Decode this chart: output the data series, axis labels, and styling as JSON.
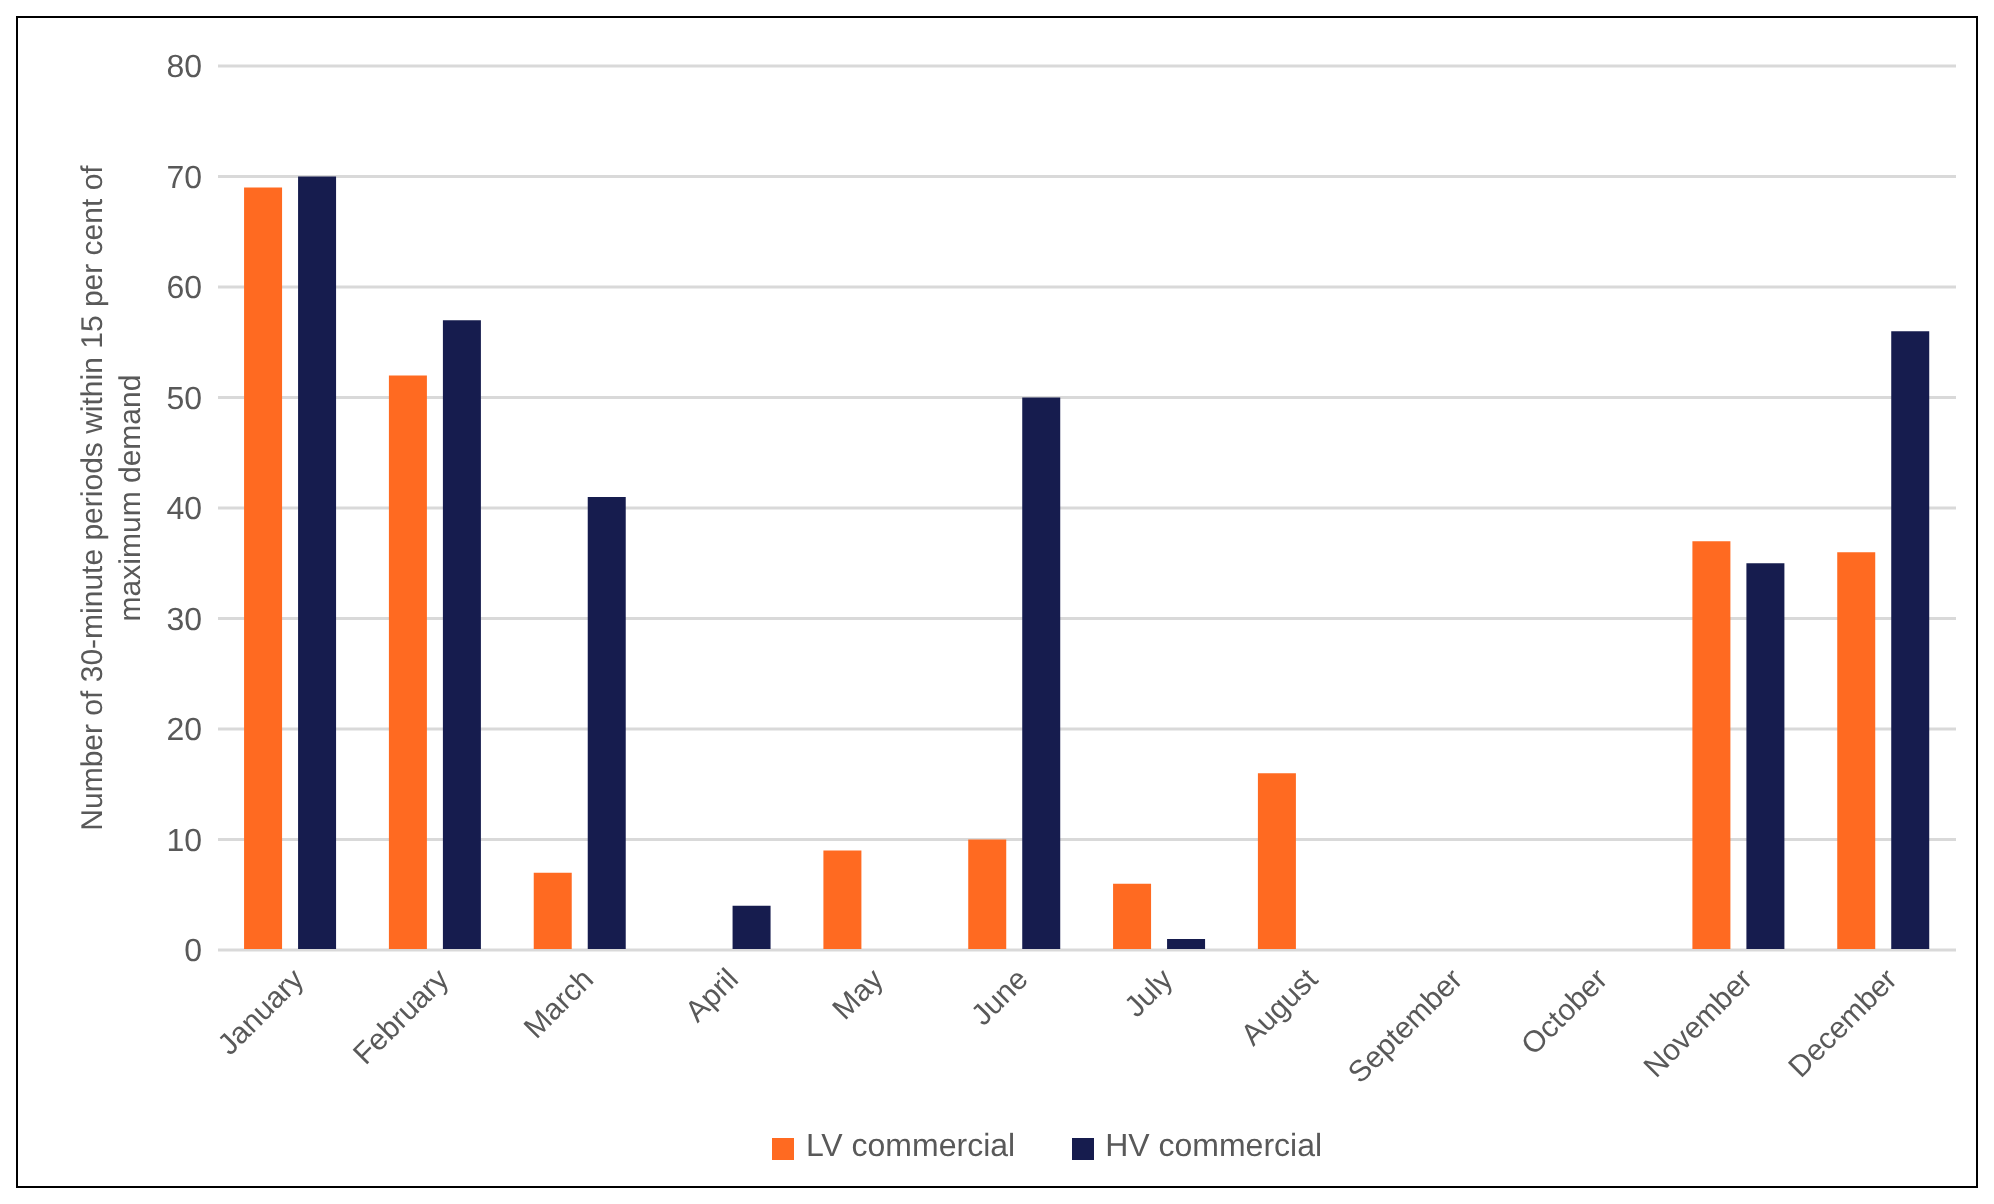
{
  "chart_data": {
    "type": "bar",
    "ylabel": "Number of 30-minute periods within 15 per cent of maximum demand",
    "categories": [
      "January",
      "February",
      "March",
      "April",
      "May",
      "June",
      "July",
      "August",
      "September",
      "October",
      "November",
      "December"
    ],
    "series": [
      {
        "name": "LV commercial",
        "color": "#ff6a21",
        "values": [
          69,
          52,
          7,
          0,
          9,
          10,
          6,
          16,
          0,
          0,
          37,
          36
        ]
      },
      {
        "name": "HV commercial",
        "color": "#161c4e",
        "values": [
          70,
          57,
          41,
          4,
          0,
          50,
          1,
          0,
          0,
          0,
          35,
          56
        ]
      }
    ],
    "ylim": [
      0,
      80
    ],
    "yticks": [
      0,
      10,
      20,
      30,
      40,
      50,
      60,
      70,
      80
    ],
    "grid": "y",
    "legend": "bottom"
  }
}
